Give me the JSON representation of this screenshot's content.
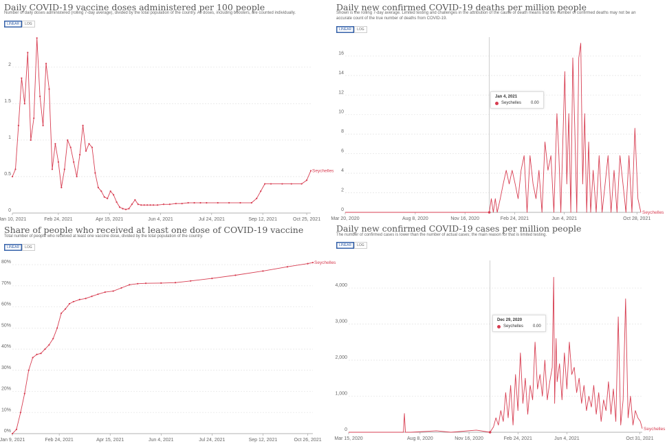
{
  "colors": {
    "series": "#d73c50",
    "grid": "#e6e6e6",
    "toggle_active": "#3360a9"
  },
  "toggle": {
    "linear": "LINEAR",
    "log": "LOG",
    "active": "linear"
  },
  "chart_data": [
    {
      "type": "line",
      "title": "Daily COVID-19 vaccine doses administered per 100 people",
      "subtitle": "Number of daily doses administered (rolling 7-day average), divided by the total population of the country. All doses, including boosters, are counted individually.",
      "series": [
        {
          "name": "Seychelles",
          "end_label": "Seychelles",
          "markers": true,
          "x": [
            "2021-01-10",
            "2021-01-13",
            "2021-01-16",
            "2021-01-19",
            "2021-01-22",
            "2021-01-25",
            "2021-01-28",
            "2021-01-31",
            "2021-02-03",
            "2021-02-06",
            "2021-02-09",
            "2021-02-12",
            "2021-02-15",
            "2021-02-18",
            "2021-02-21",
            "2021-02-24",
            "2021-02-27",
            "2021-03-02",
            "2021-03-05",
            "2021-03-08",
            "2021-03-11",
            "2021-03-14",
            "2021-03-17",
            "2021-03-20",
            "2021-03-23",
            "2021-03-26",
            "2021-03-29",
            "2021-04-01",
            "2021-04-04",
            "2021-04-07",
            "2021-04-10",
            "2021-04-13",
            "2021-04-16",
            "2021-04-19",
            "2021-04-22",
            "2021-04-25",
            "2021-04-28",
            "2021-05-01",
            "2021-05-04",
            "2021-05-07",
            "2021-05-10",
            "2021-05-13",
            "2021-05-16",
            "2021-05-19",
            "2021-05-22",
            "2021-05-25",
            "2021-05-28",
            "2021-06-01",
            "2021-06-07",
            "2021-06-13",
            "2021-06-19",
            "2021-06-25",
            "2021-07-01",
            "2021-07-07",
            "2021-07-13",
            "2021-07-19",
            "2021-07-30",
            "2021-08-10",
            "2021-08-21",
            "2021-09-01",
            "2021-09-06",
            "2021-09-10",
            "2021-09-14",
            "2021-09-20",
            "2021-10-01",
            "2021-10-10",
            "2021-10-20",
            "2021-10-25",
            "2021-10-29"
          ],
          "y": [
            0.5,
            0.6,
            1.2,
            1.85,
            1.5,
            2.2,
            1.0,
            1.3,
            2.4,
            1.6,
            1.2,
            2.05,
            1.7,
            0.6,
            0.95,
            0.7,
            0.35,
            0.6,
            1.0,
            0.9,
            0.7,
            0.5,
            0.8,
            1.2,
            0.85,
            0.95,
            0.9,
            0.55,
            0.35,
            0.3,
            0.22,
            0.2,
            0.3,
            0.25,
            0.15,
            0.08,
            0.06,
            0.05,
            0.06,
            0.12,
            0.18,
            0.12,
            0.11,
            0.11,
            0.11,
            0.11,
            0.11,
            0.11,
            0.12,
            0.12,
            0.13,
            0.13,
            0.14,
            0.14,
            0.14,
            0.14,
            0.14,
            0.14,
            0.14,
            0.14,
            0.2,
            0.3,
            0.4,
            0.4,
            0.4,
            0.4,
            0.4,
            0.45,
            0.58
          ]
        }
      ],
      "x_ticks": [
        "Jan 10, 2021",
        "Feb 24, 2021",
        "Apr 15, 2021",
        "Jun 4, 2021",
        "Jul 24, 2021",
        "Sep 12, 2021",
        "Oct 25, 2021"
      ],
      "x_tick_dates": [
        "2021-01-10",
        "2021-02-24",
        "2021-04-15",
        "2021-06-04",
        "2021-07-24",
        "2021-09-12",
        "2021-10-25"
      ],
      "x_range": [
        "2021-01-10",
        "2021-10-29"
      ],
      "y_ticks": [
        0,
        0.5,
        1,
        1.5,
        2
      ],
      "y_tick_labels": [
        "0",
        "0.5",
        "1",
        "1.5",
        "2"
      ],
      "ylim": [
        0,
        2.45
      ],
      "grid": true
    },
    {
      "type": "line",
      "title": "Daily new confirmed COVID-19 deaths per million people",
      "subtitle": "Shown is the rolling 7-day average. Limited testing and challenges in the attribution of the cause of death means that the number of confirmed deaths may not be an accurate count of the true number of deaths from COVID-19.",
      "series": [
        {
          "name": "Seychelles",
          "end_label": "Seychelles",
          "markers": false,
          "x": [
            "2020-03-20",
            "2021-01-04",
            "2021-01-08",
            "2021-01-12",
            "2021-01-16",
            "2021-01-20",
            "2021-01-26",
            "2021-02-01",
            "2021-02-07",
            "2021-02-13",
            "2021-02-19",
            "2021-02-25",
            "2021-03-03",
            "2021-03-09",
            "2021-03-15",
            "2021-03-21",
            "2021-03-27",
            "2021-04-02",
            "2021-04-08",
            "2021-04-14",
            "2021-04-20",
            "2021-04-26",
            "2021-05-02",
            "2021-05-08",
            "2021-05-14",
            "2021-05-20",
            "2021-05-24",
            "2021-05-28",
            "2021-06-01",
            "2021-06-05",
            "2021-06-09",
            "2021-06-13",
            "2021-06-17",
            "2021-06-21",
            "2021-06-25",
            "2021-06-29",
            "2021-07-03",
            "2021-07-07",
            "2021-07-11",
            "2021-07-15",
            "2021-07-19",
            "2021-07-23",
            "2021-07-27",
            "2021-08-01",
            "2021-08-07",
            "2021-08-13",
            "2021-08-19",
            "2021-08-25",
            "2021-08-31",
            "2021-09-06",
            "2021-09-12",
            "2021-09-18",
            "2021-09-24",
            "2021-09-30",
            "2021-10-06",
            "2021-10-12",
            "2021-10-18",
            "2021-10-24",
            "2021-10-30",
            "2021-11-05"
          ],
          "y": [
            0,
            0,
            1.4,
            0,
            1.4,
            0,
            1.4,
            2.9,
            4.3,
            2.9,
            4.3,
            2.9,
            1.4,
            4.3,
            5.8,
            0,
            5.8,
            2.9,
            1.4,
            4.3,
            0,
            7.2,
            4.3,
            5.8,
            0,
            10.1,
            5.8,
            0,
            7.2,
            14.4,
            2.9,
            10.1,
            0,
            15.8,
            8.6,
            0,
            15.8,
            17.3,
            2.9,
            10.1,
            0,
            7.2,
            0,
            4.3,
            0,
            5.8,
            0,
            2.9,
            5.8,
            0,
            4.3,
            0,
            5.8,
            2.9,
            0,
            5.8,
            0,
            8.6,
            1.4,
            0
          ]
        }
      ],
      "x_ticks": [
        "Mar 20, 2020",
        "Aug 8, 2020",
        "Nov 16, 2020",
        "Feb 24, 2021",
        "Jun 4, 2021",
        "Oct 28, 2021"
      ],
      "x_tick_dates": [
        "2020-03-20",
        "2020-08-08",
        "2020-11-16",
        "2021-02-24",
        "2021-06-04",
        "2021-10-28"
      ],
      "x_range": [
        "2020-03-20",
        "2021-11-05"
      ],
      "y_ticks": [
        0,
        2,
        4,
        6,
        8,
        10,
        12,
        14,
        16
      ],
      "y_tick_labels": [
        "0",
        "2",
        "4",
        "6",
        "8",
        "10",
        "12",
        "14",
        "16"
      ],
      "ylim": [
        0,
        17.5
      ],
      "grid": true,
      "hover": {
        "date": "Jan 4, 2021",
        "x": "2021-01-04",
        "series": "Seychelles",
        "value": "0.00"
      }
    },
    {
      "type": "line",
      "title": "Share of people who received at least one dose of COVID-19 vaccine",
      "subtitle": "Total number of people who received at least one vaccine dose, divided by the total population of the country.",
      "series": [
        {
          "name": "Seychelles",
          "end_label": "Seychelles",
          "markers": true,
          "x": [
            "2021-01-09",
            "2021-01-13",
            "2021-01-17",
            "2021-01-21",
            "2021-01-25",
            "2021-01-29",
            "2021-02-02",
            "2021-02-06",
            "2021-02-10",
            "2021-02-14",
            "2021-02-18",
            "2021-02-22",
            "2021-02-26",
            "2021-03-02",
            "2021-03-06",
            "2021-03-10",
            "2021-03-16",
            "2021-03-22",
            "2021-03-28",
            "2021-04-03",
            "2021-04-10",
            "2021-04-18",
            "2021-04-26",
            "2021-05-04",
            "2021-05-12",
            "2021-05-20",
            "2021-06-04",
            "2021-06-18",
            "2021-07-03",
            "2021-07-24",
            "2021-08-16",
            "2021-09-12",
            "2021-10-06",
            "2021-10-26",
            "2021-10-31"
          ],
          "y": [
            0,
            2,
            10,
            19,
            30,
            36,
            37.5,
            38,
            40,
            42,
            45,
            50,
            57,
            59,
            61.5,
            62.5,
            63.5,
            64,
            65,
            66,
            67,
            67.5,
            69,
            70.5,
            71,
            71.2,
            71.3,
            71.5,
            72.3,
            73.5,
            75,
            77,
            79,
            80.5,
            81
          ]
        }
      ],
      "x_ticks": [
        "Jan 9, 2021",
        "Feb 24, 2021",
        "Apr 15, 2021",
        "Jun 4, 2021",
        "Jul 24, 2021",
        "Sep 12, 2021",
        "Oct 26, 2021"
      ],
      "x_tick_dates": [
        "2021-01-09",
        "2021-02-24",
        "2021-04-15",
        "2021-06-04",
        "2021-07-24",
        "2021-09-12",
        "2021-10-26"
      ],
      "x_range": [
        "2021-01-09",
        "2021-10-31"
      ],
      "y_ticks": [
        0,
        10,
        20,
        30,
        40,
        50,
        60,
        70,
        80
      ],
      "y_tick_labels": [
        "0%",
        "10%",
        "20%",
        "30%",
        "40%",
        "50%",
        "60%",
        "70%",
        "80%"
      ],
      "ylim": [
        0,
        82
      ],
      "grid": true
    },
    {
      "type": "line",
      "title": "Daily new confirmed COVID-19 cases per million people",
      "subtitle": "The number of confirmed cases is lower than the number of actual cases; the main reason for that is limited testing.",
      "series": [
        {
          "name": "Seychelles",
          "end_label": "Seychelles",
          "markers": false,
          "x": [
            "2020-03-15",
            "2020-06-01",
            "2020-07-05",
            "2020-07-07",
            "2020-07-09",
            "2020-07-20",
            "2020-09-10",
            "2020-10-10",
            "2020-12-01",
            "2020-12-29",
            "2021-01-05",
            "2021-01-10",
            "2021-01-15",
            "2021-01-20",
            "2021-01-25",
            "2021-01-30",
            "2021-02-04",
            "2021-02-09",
            "2021-02-14",
            "2021-02-19",
            "2021-02-24",
            "2021-03-01",
            "2021-03-06",
            "2021-03-11",
            "2021-03-16",
            "2021-03-21",
            "2021-03-26",
            "2021-03-31",
            "2021-04-05",
            "2021-04-10",
            "2021-04-15",
            "2021-04-20",
            "2021-04-25",
            "2021-04-30",
            "2021-05-05",
            "2021-05-08",
            "2021-05-10",
            "2021-05-13",
            "2021-05-15",
            "2021-05-20",
            "2021-05-25",
            "2021-05-30",
            "2021-06-04",
            "2021-06-09",
            "2021-06-14",
            "2021-06-19",
            "2021-06-24",
            "2021-06-29",
            "2021-07-04",
            "2021-07-09",
            "2021-07-14",
            "2021-07-19",
            "2021-07-24",
            "2021-07-29",
            "2021-08-03",
            "2021-08-08",
            "2021-08-13",
            "2021-08-18",
            "2021-08-23",
            "2021-08-28",
            "2021-09-02",
            "2021-09-07",
            "2021-09-12",
            "2021-09-17",
            "2021-09-22",
            "2021-09-27",
            "2021-10-02",
            "2021-10-07",
            "2021-10-12",
            "2021-10-17",
            "2021-10-22",
            "2021-10-27",
            "2021-11-01",
            "2021-11-05"
          ],
          "y": [
            0,
            0,
            0,
            520,
            0,
            0,
            40,
            0,
            60,
            0,
            150,
            400,
            200,
            600,
            300,
            1100,
            400,
            1300,
            200,
            1600,
            600,
            2200,
            800,
            1500,
            500,
            1300,
            900,
            2500,
            1200,
            1600,
            1000,
            2000,
            900,
            1400,
            1800,
            4300,
            800,
            2600,
            1400,
            1900,
            900,
            2200,
            1200,
            2500,
            1600,
            1800,
            1100,
            1500,
            800,
            1300,
            600,
            1000,
            700,
            1300,
            500,
            1100,
            300,
            900,
            600,
            1400,
            500,
            1200,
            300,
            3200,
            200,
            900,
            3700,
            400,
            1000,
            200,
            600,
            400,
            300,
            100
          ]
        }
      ],
      "x_ticks": [
        "Mar 15, 2020",
        "Aug 8, 2020",
        "Nov 16, 2020",
        "Feb 24, 2021",
        "Jun 4, 2021",
        "Oct 31, 2021"
      ],
      "x_tick_dates": [
        "2020-03-15",
        "2020-08-08",
        "2020-11-16",
        "2021-02-24",
        "2021-06-04",
        "2021-10-31"
      ],
      "x_range": [
        "2020-03-15",
        "2021-11-05"
      ],
      "y_ticks": [
        0,
        1000,
        2000,
        3000,
        4000
      ],
      "y_tick_labels": [
        "0",
        "1,000",
        "2,000",
        "3,000",
        "4,000"
      ],
      "ylim": [
        0,
        4650
      ],
      "grid": true,
      "hover": {
        "date": "Dec 29, 2020",
        "x": "2020-12-29",
        "series": "Seychelles",
        "value": "0.00"
      }
    }
  ]
}
